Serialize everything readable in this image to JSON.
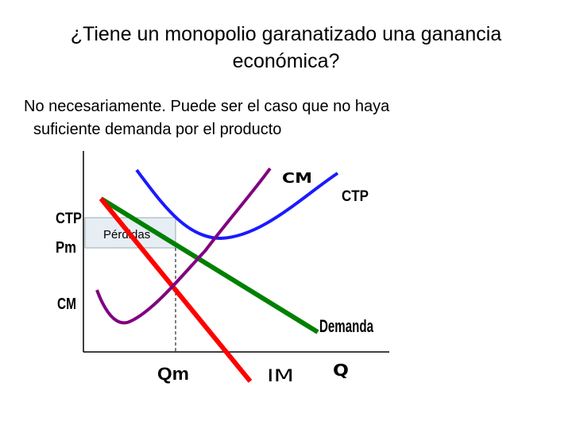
{
  "title_line1": "¿Tiene un monopolio garanatizado una ganancia",
  "title_line2": "económica?",
  "body_line1": "No necesariamente. Puede ser el caso que no haya",
  "body_line2": "suficiente demanda por el producto",
  "labels": {
    "cm_curve": "CM",
    "ctp_curve": "CTP",
    "ctp_axis": "CTP",
    "pm_axis": "Pm",
    "cm_axis": "CM",
    "perdidas": "Pérdidas",
    "demanda": "Demanda",
    "qm": "Qm",
    "im": "IM",
    "q": "Q"
  },
  "colors": {
    "ctp": "#1a1aff",
    "cm": "#800080",
    "demand": "#008000",
    "im": "#ff0000",
    "loss_box": "#e6eef4"
  }
}
